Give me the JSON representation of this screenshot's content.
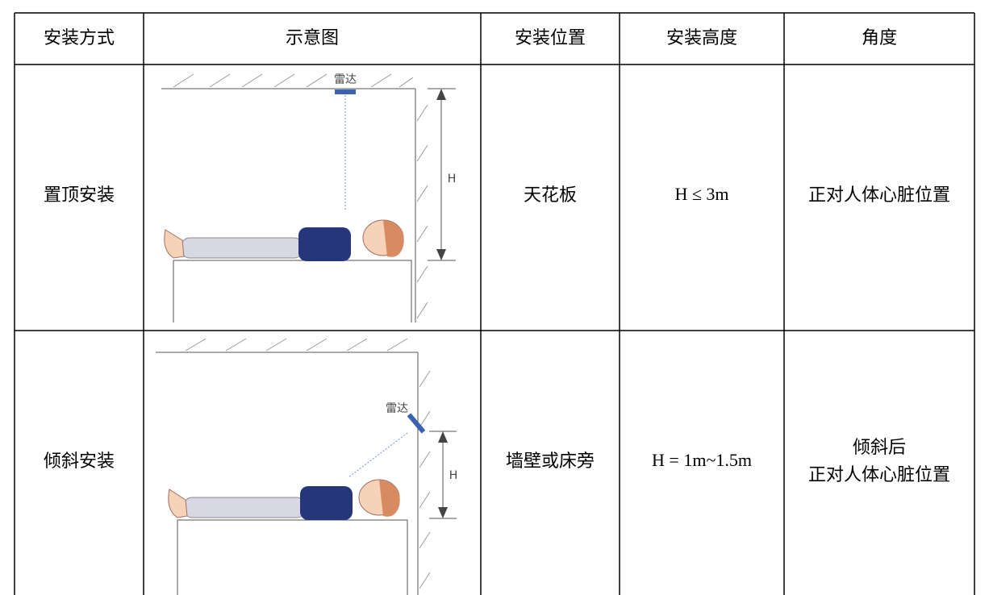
{
  "table": {
    "headers": [
      "安装方式",
      "示意图",
      "安装位置",
      "安装高度",
      "角度"
    ],
    "rows": [
      {
        "method": "置顶安装",
        "diagram": {
          "radar_label": "雷达",
          "height_label": "H"
        },
        "position": "天花板",
        "height": "H ≤ 3m",
        "angle": [
          "正对人体心脏位置"
        ]
      },
      {
        "method": "倾斜安装",
        "diagram": {
          "radar_label": "雷达",
          "height_label": "H"
        },
        "position": "墙壁或床旁",
        "height": "H = 1m~1.5m",
        "angle": [
          "倾斜后",
          "正对人体心脏位置"
        ]
      }
    ]
  }
}
